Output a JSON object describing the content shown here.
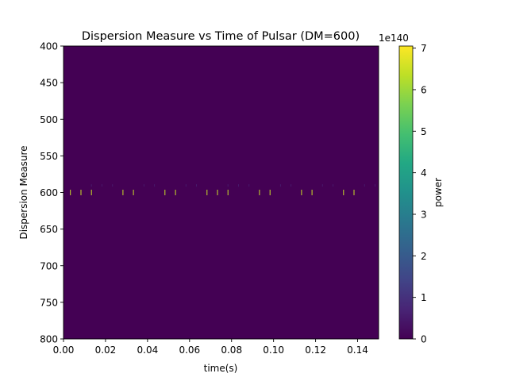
{
  "chart_data": {
    "type": "heatmap",
    "title": "Dispersion Measure vs Time of Pulsar (DM=600)",
    "xlabel": "time(s)",
    "ylabel": "Dispersion Measure",
    "xlim": [
      0,
      0.15
    ],
    "ylim": [
      800,
      400
    ],
    "x_ticks": [
      "0.00",
      "0.02",
      "0.04",
      "0.06",
      "0.08",
      "0.10",
      "0.12",
      "0.14"
    ],
    "x_tick_values": [
      0,
      0.02,
      0.04,
      0.06,
      0.08,
      0.1,
      0.12,
      0.14
    ],
    "y_ticks": [
      "400",
      "450",
      "500",
      "550",
      "600",
      "650",
      "700",
      "750",
      "800"
    ],
    "y_tick_values": [
      400,
      450,
      500,
      550,
      600,
      650,
      700,
      750,
      800
    ],
    "colorbar": {
      "label": "power",
      "offset_text": "1e140",
      "ticks": [
        "0",
        "1",
        "2",
        "3",
        "4",
        "5",
        "6",
        "7"
      ],
      "tick_values": [
        0,
        1,
        2,
        3,
        4,
        5,
        6,
        7
      ],
      "range": [
        0,
        7.05
      ],
      "colormap": "viridis"
    },
    "background_value": 0,
    "bright_pulses": {
      "dm": 600,
      "times": [
        0.0033,
        0.0083,
        0.0133,
        0.0283,
        0.0333,
        0.0483,
        0.0533,
        0.0683,
        0.0733,
        0.0783,
        0.0933,
        0.0983,
        0.1133,
        0.1183,
        0.1333,
        0.1383
      ],
      "value": 6.5
    },
    "faint_pulses": {
      "dm": 592,
      "times": [
        0.0133,
        0.0183,
        0.0233,
        0.0383,
        0.0433,
        0.0583,
        0.0633,
        0.0783,
        0.0833,
        0.0883,
        0.1033,
        0.1083,
        0.1233,
        0.1283,
        0.1433,
        0.1483
      ],
      "value": 0.5
    }
  }
}
